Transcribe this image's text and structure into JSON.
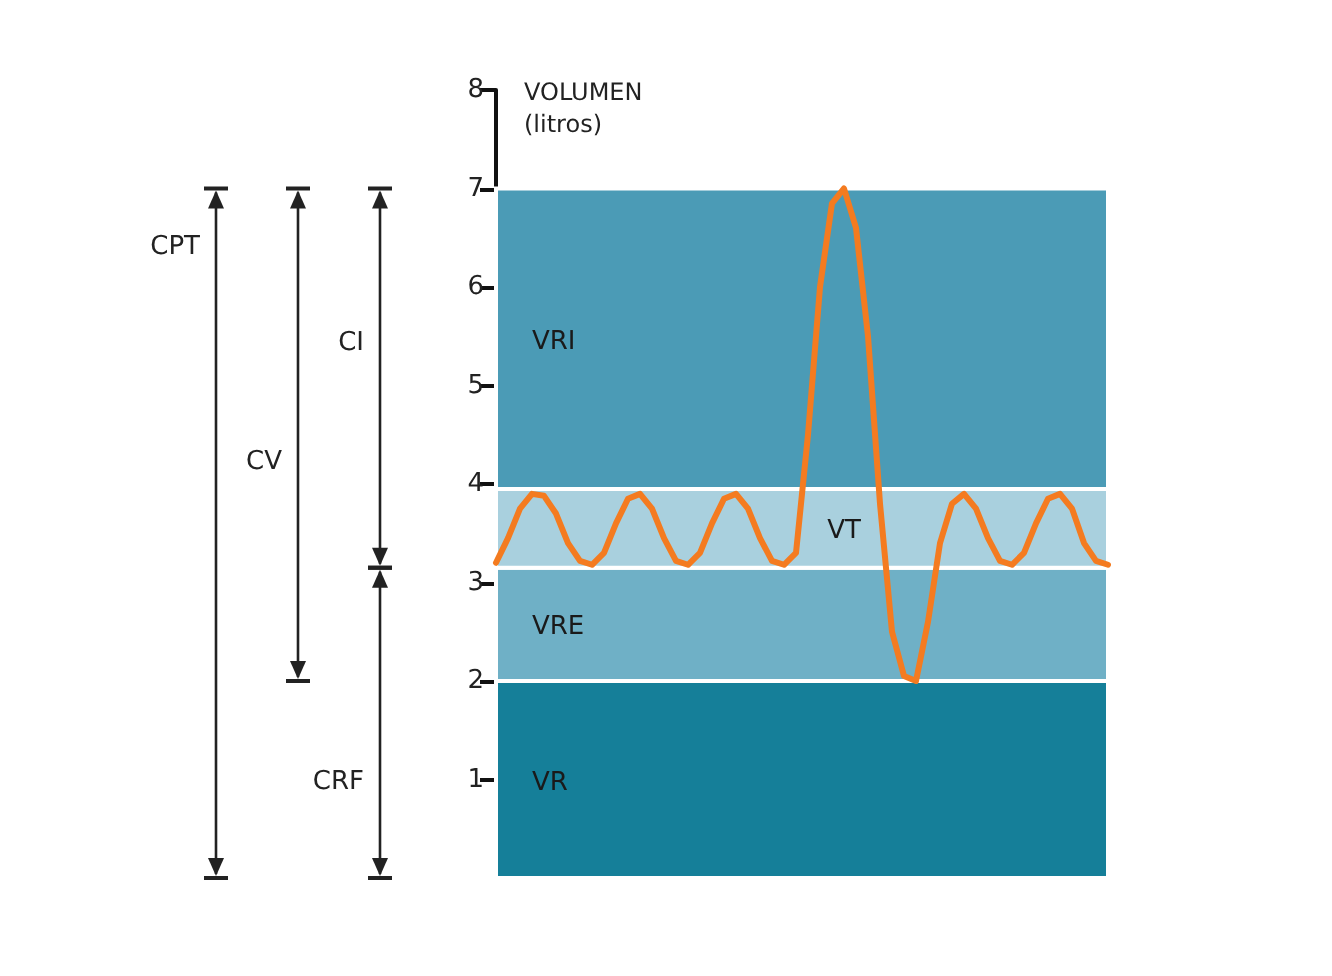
{
  "chart_data": {
    "type": "line",
    "ylabel": "VOLUMEN (litros)",
    "categories": [
      null,
      null,
      null,
      null,
      null,
      null,
      null,
      null,
      null,
      null,
      null,
      null,
      null,
      null,
      null,
      null,
      null,
      null,
      null,
      null,
      null,
      null,
      null,
      null,
      null,
      null,
      null,
      null,
      null,
      null,
      null,
      null,
      null,
      null,
      null,
      null,
      null,
      null,
      null,
      null,
      null,
      null,
      null,
      null,
      null,
      null,
      null,
      null,
      null,
      null,
      null,
      null
    ],
    "series": [
      {
        "color": "#f47b20",
        "values": [
          3.2,
          3.45,
          3.75,
          3.9,
          3.88,
          3.7,
          3.4,
          3.22,
          3.18,
          3.3,
          3.6,
          3.85,
          3.9,
          3.75,
          3.45,
          3.22,
          3.18,
          3.3,
          3.6,
          3.85,
          3.9,
          3.75,
          3.45,
          3.22,
          3.18,
          3.3,
          4.5,
          6.0,
          6.85,
          7.0,
          6.6,
          5.5,
          3.8,
          2.5,
          2.05,
          2.0,
          2.6,
          3.4,
          3.8,
          3.9,
          3.75,
          3.45,
          3.22,
          3.18,
          3.3,
          3.6,
          3.85,
          3.9,
          3.75,
          3.4,
          3.22,
          3.18
        ]
      }
    ],
    "ylim": [
      0,
      8
    ],
    "yticks": [
      1,
      2,
      3,
      4,
      5,
      6,
      7,
      8
    ],
    "tick_labels": "y",
    "bands": [
      {
        "axis": "y",
        "from": 0,
        "to": 2,
        "label": "VR",
        "color": "#157f99"
      },
      {
        "axis": "y",
        "from": 2,
        "to": 3.15,
        "label": "VRE",
        "color": "#6fb0c6"
      },
      {
        "axis": "y",
        "from": 3.15,
        "to": 3.95,
        "label": "VT",
        "color": "#a9d0de"
      },
      {
        "axis": "y",
        "from": 3.95,
        "to": 7,
        "label": "VRI",
        "color": "#4b9bb6"
      }
    ],
    "annotations": [
      "CPT",
      "CV",
      "CI",
      "CRF"
    ]
  }
}
